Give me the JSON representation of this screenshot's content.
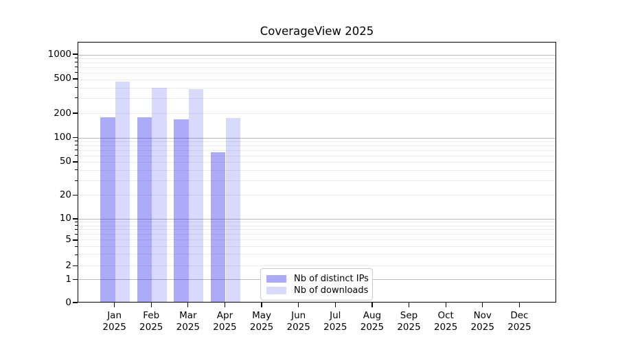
{
  "chart_data": {
    "type": "bar",
    "title": "CoverageView 2025",
    "months": [
      "Jan",
      "Feb",
      "Mar",
      "Apr",
      "May",
      "Jun",
      "Jul",
      "Aug",
      "Sep",
      "Oct",
      "Nov",
      "Dec"
    ],
    "year_label": "2025",
    "series": [
      {
        "name": "Nb of distinct IPs",
        "color": "rgba(10,10,235,0.34)",
        "values": [
          175,
          173,
          163,
          65,
          null,
          null,
          null,
          null,
          null,
          null,
          null,
          null
        ]
      },
      {
        "name": "Nb of downloads",
        "color": "rgba(10,10,235,0.155)",
        "values": [
          458,
          388,
          375,
          172,
          null,
          null,
          null,
          null,
          null,
          null,
          null,
          null
        ]
      }
    ],
    "y_ticks": [
      0,
      1,
      2,
      5,
      10,
      20,
      50,
      100,
      200,
      500,
      1000
    ],
    "y_grid_major": [
      1,
      10,
      100,
      1000
    ],
    "y_grid_minor": [
      2,
      3,
      4,
      5,
      6,
      7,
      8,
      9,
      20,
      30,
      40,
      50,
      60,
      70,
      80,
      90,
      200,
      300,
      400,
      500,
      600,
      700,
      800,
      900
    ],
    "y_scale": "symlog",
    "ylim": [
      0,
      1400
    ],
    "grid": "horizontal, decades emphasized",
    "legend_position": "inside lower-center"
  }
}
